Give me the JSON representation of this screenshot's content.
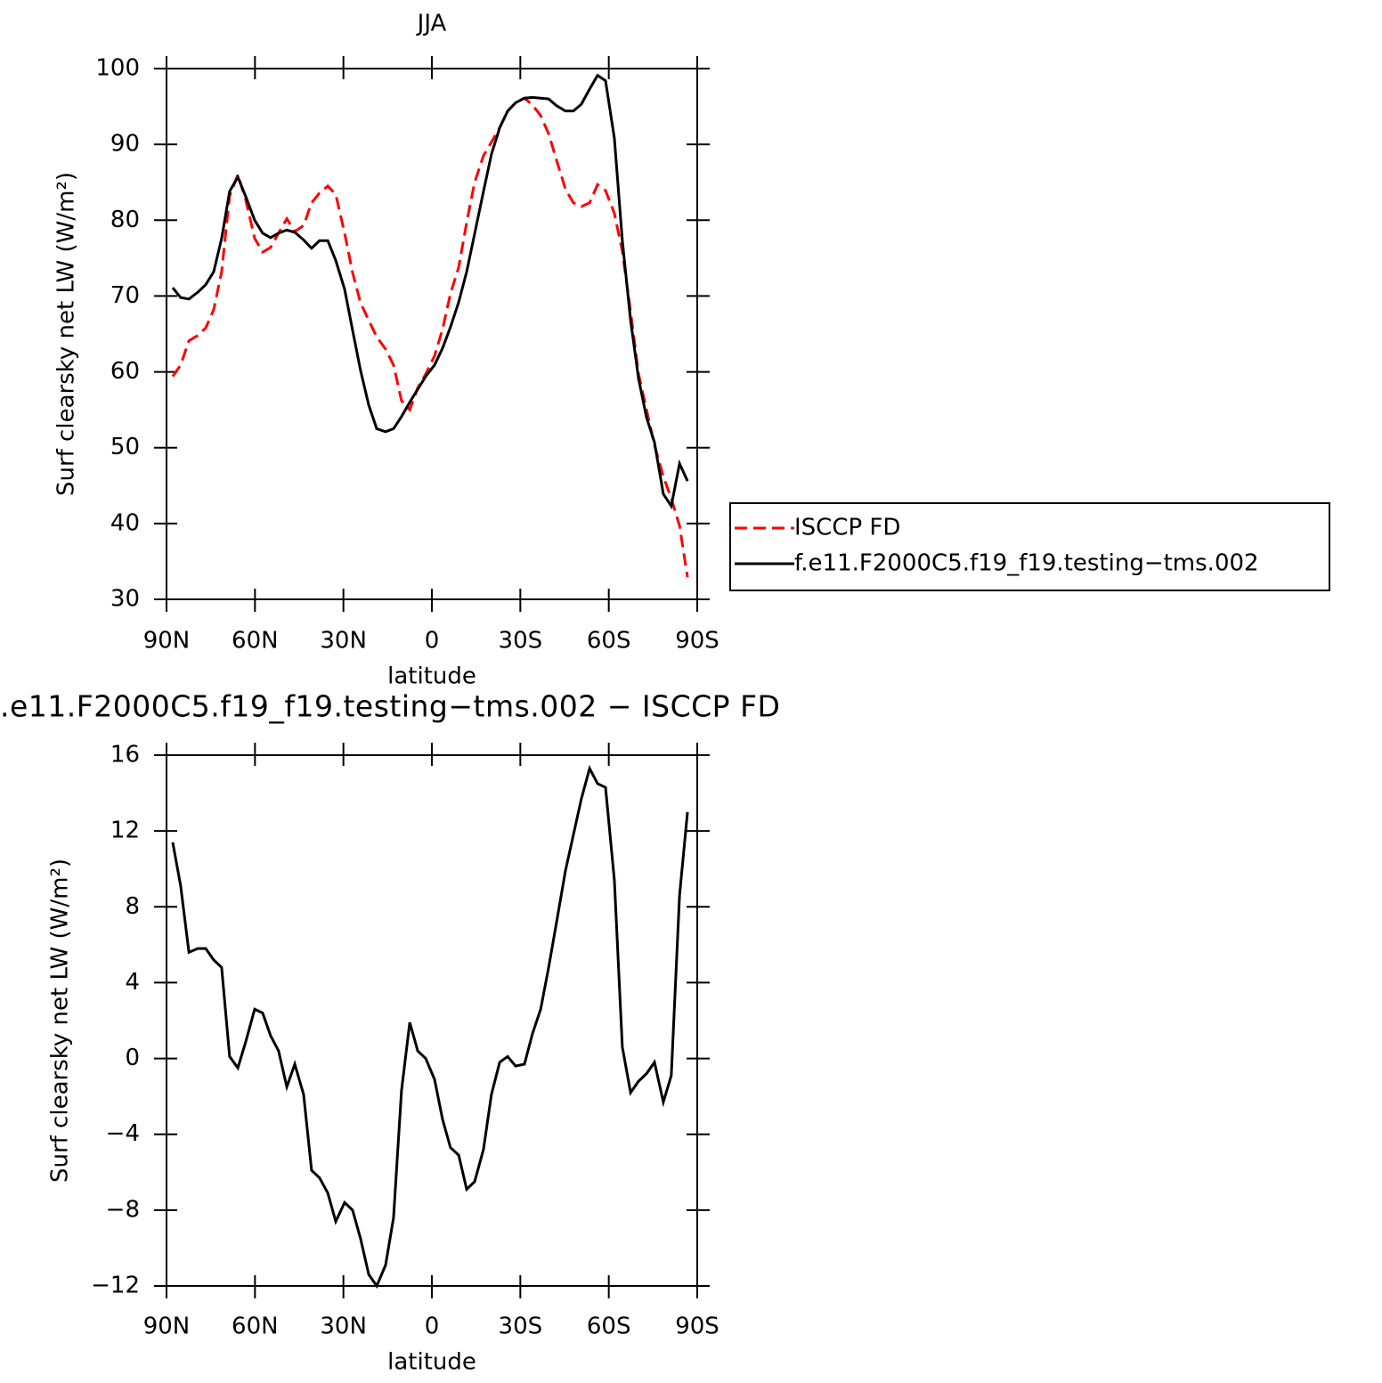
{
  "chart_data": [
    {
      "type": "line",
      "title": "JJA",
      "xlabel": "latitude",
      "ylabel": "Surf clearsky net LW (W/m²)",
      "xlim": [
        90,
        -90
      ],
      "ylim": [
        30,
        100
      ],
      "xticks": [
        {
          "value": 90,
          "label": "90N"
        },
        {
          "value": 60,
          "label": "60N"
        },
        {
          "value": 30,
          "label": "30N"
        },
        0,
        {
          "value": -30,
          "label": "30S"
        },
        {
          "value": -60,
          "label": "60S"
        },
        {
          "value": -90,
          "label": "90S"
        }
      ],
      "yticks": [
        30,
        40,
        50,
        60,
        70,
        80,
        90,
        100
      ],
      "legend": "right",
      "x": [
        87.9,
        85.2,
        82.4,
        79.4,
        76.7,
        74,
        71.3,
        68.6,
        65.8,
        63.1,
        60.1,
        57.4,
        54.7,
        52,
        49.2,
        46.5,
        43.5,
        40.8,
        38.1,
        35.3,
        32.6,
        29.6,
        26.9,
        24.2,
        21.4,
        18.7,
        15.7,
        13,
        10.3,
        7.5,
        4.8,
        2.1,
        -0.9,
        -3.6,
        -6.3,
        -9.1,
        -11.8,
        -14.5,
        -17.5,
        -20.2,
        -23,
        -25.7,
        -28.4,
        -31.4,
        -34.1,
        -36.9,
        -39.6,
        -42.3,
        -45.3,
        -48,
        -50.7,
        -53.5,
        -56.2,
        -58.9,
        -61.9,
        -64.6,
        -67.4,
        -70.1,
        -72.8,
        -75.5,
        -78.5,
        -81.2,
        -84,
        -86.7
      ],
      "series": [
        {
          "name": "ISCCP FD",
          "color": "#ff0000",
          "linestyle": "dashed",
          "values": [
            59.4,
            60.9,
            64.1,
            64.8,
            65.8,
            68.2,
            73.2,
            83.2,
            86,
            82.6,
            77.6,
            75.8,
            76.4,
            78.3,
            80.2,
            78.5,
            79.3,
            82.3,
            83.6,
            84.5,
            83.4,
            78.3,
            73.1,
            69.1,
            66.8,
            64.6,
            63,
            60.9,
            56.2,
            55,
            57.9,
            59.7,
            62.1,
            65.6,
            70.3,
            73.8,
            79.7,
            85,
            88.5,
            90.3,
            92.2,
            94.4,
            95.5,
            96.1,
            95.2,
            93.8,
            91.4,
            87.9,
            84.1,
            82.3,
            81.8,
            82.3,
            84.7,
            83.9,
            80.9,
            75.9,
            67.9,
            59.7,
            55,
            50.3,
            46.2,
            43.3,
            39.7,
            32.9
          ]
        },
        {
          "name": "f.e11.F2000C5.f19_f19.testing−tms.002",
          "color": "#000000",
          "linestyle": "solid",
          "values": [
            71.1,
            69.8,
            69.6,
            70.5,
            71.5,
            73.2,
            77.6,
            83.8,
            85.7,
            83.1,
            80,
            78.3,
            77.7,
            78.3,
            78.7,
            78.4,
            77.4,
            76.3,
            77.3,
            77.3,
            74.7,
            70.9,
            65.5,
            60.2,
            55.6,
            52.5,
            52.1,
            52.5,
            54.1,
            56,
            57.7,
            59.4,
            60.9,
            63.1,
            65.9,
            69.2,
            73.2,
            78.2,
            83.8,
            88.7,
            92.2,
            94.4,
            95.5,
            96.1,
            96.2,
            96.1,
            96,
            95.1,
            94.4,
            94.4,
            95.3,
            97.3,
            99.1,
            98.4,
            90.8,
            77.3,
            66.8,
            59.1,
            54,
            50.7,
            43.9,
            42.3,
            47.9,
            45.6
          ]
        }
      ]
    },
    {
      "type": "line",
      "title": ".e11.F2000C5.f19_f19.testing−tms.002 − ISCCP FD",
      "xlabel": "latitude",
      "ylabel": "Surf clearsky net LW (W/m²)",
      "xlim": [
        90,
        -90
      ],
      "ylim": [
        -12,
        16
      ],
      "xticks": [
        {
          "value": 90,
          "label": "90N"
        },
        {
          "value": 60,
          "label": "60N"
        },
        {
          "value": 30,
          "label": "30N"
        },
        0,
        {
          "value": -30,
          "label": "30S"
        },
        {
          "value": -60,
          "label": "60S"
        },
        {
          "value": -90,
          "label": "90S"
        }
      ],
      "yticks": [
        {
          "value": -12,
          "label": "−12"
        },
        {
          "value": -8,
          "label": "−8"
        },
        {
          "value": -4,
          "label": "−4"
        },
        0,
        4,
        8,
        12,
        16
      ],
      "x": [
        87.9,
        85.2,
        82.4,
        79.4,
        76.7,
        74,
        71.3,
        68.6,
        65.8,
        63.1,
        60.1,
        57.4,
        54.7,
        52,
        49.2,
        46.5,
        43.5,
        40.8,
        38.1,
        35.3,
        32.6,
        29.6,
        26.9,
        24.2,
        21.4,
        18.7,
        15.7,
        13,
        10.3,
        7.5,
        4.8,
        2.1,
        -0.9,
        -3.6,
        -6.3,
        -9.1,
        -11.8,
        -14.5,
        -17.5,
        -20.2,
        -23,
        -25.7,
        -28.4,
        -31.4,
        -34.1,
        -36.9,
        -39.6,
        -42.3,
        -45.3,
        -48,
        -50.7,
        -53.5,
        -56.2,
        -58.9,
        -61.9,
        -64.6,
        -67.4,
        -70.1,
        -72.8,
        -75.5,
        -78.5,
        -81.2,
        -84,
        -86.7
      ],
      "series": [
        {
          "color": "#000000",
          "linestyle": "solid",
          "values": [
            11.4,
            9.1,
            5.6,
            5.8,
            5.8,
            5.2,
            4.8,
            0.1,
            -0.5,
            0.9,
            2.6,
            2.4,
            1.2,
            0.4,
            -1.5,
            -0.3,
            -1.9,
            -5.9,
            -6.3,
            -7.1,
            -8.6,
            -7.6,
            -8,
            -9.5,
            -11.4,
            -12,
            -10.9,
            -8.4,
            -1.7,
            1.9,
            0.4,
            0,
            -1.1,
            -3.2,
            -4.7,
            -5.1,
            -6.9,
            -6.5,
            -4.8,
            -1.9,
            -0.2,
            0.1,
            -0.4,
            -0.3,
            1.3,
            2.6,
            4.8,
            7.2,
            9.9,
            11.8,
            13.7,
            15.3,
            14.5,
            14.3,
            9.4,
            0.6,
            -1.8,
            -1.2,
            -0.8,
            -0.2,
            -2.3,
            -0.9,
            8.6,
            13
          ]
        }
      ]
    }
  ]
}
